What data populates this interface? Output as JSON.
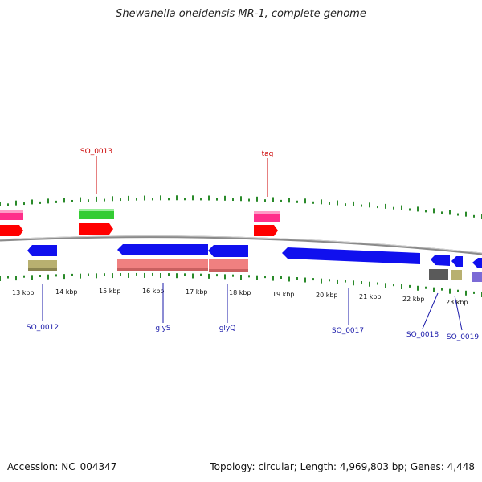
{
  "title": "Shewanella oneidensis MR-1, complete genome",
  "footer": {
    "accession": "Accession: NC_004347",
    "summary": "Topology: circular; Length: 4,969,803 bp; Genes: 4,448"
  },
  "colors": {
    "backbone": "#8a8a8a",
    "tick": "#2a8a2a",
    "label_top": "#cc0000",
    "label_bottom": "#1a1aaa",
    "cds_forward": "#ff0000",
    "cds_reverse": "#1010ee",
    "gene_magenta": "#ff2f8a",
    "gene_green": "#33cc33",
    "gene_salmon": "#f08080",
    "gene_olive": "#b8b070",
    "gene_gray": "#5a5a5a",
    "gene_purple": "#7b6ad6"
  },
  "scale_labels": [
    "13 kbp",
    "14 kbp",
    "15 kbp",
    "16 kbp",
    "17 kbp",
    "18 kbp",
    "19 kbp",
    "20 kbp",
    "21 kbp",
    "22 kbp",
    "23 kbp"
  ],
  "gene_labels_top": [
    "SO_0013",
    "tag"
  ],
  "gene_labels_bottom": [
    "SO_0012",
    "glyS",
    "glyQ",
    "SO_0017",
    "SO_0018",
    "SO_0019"
  ]
}
